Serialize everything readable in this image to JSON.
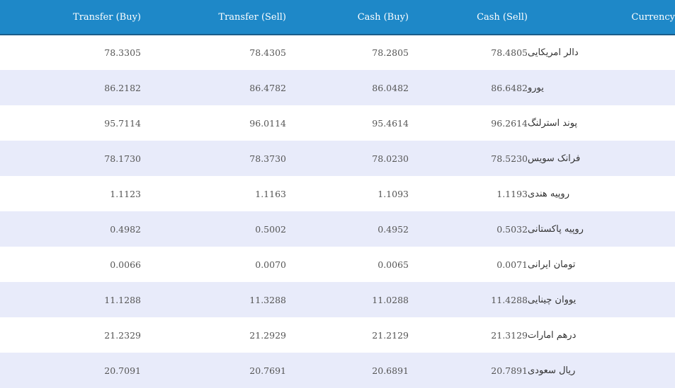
{
  "table": {
    "headers": {
      "transfer_buy": "Transfer (Buy)",
      "transfer_sell": "Transfer (Sell)",
      "cash_buy": "Cash (Buy)",
      "cash_sell": "Cash (Sell)",
      "currency": "Currency"
    },
    "rows": [
      {
        "transfer_buy": "78.3305",
        "transfer_sell": "78.4305",
        "cash_buy": "78.2805",
        "cash_sell": "78.4805",
        "currency": "دالر امریکایی"
      },
      {
        "transfer_buy": "86.2182",
        "transfer_sell": "86.4782",
        "cash_buy": "86.0482",
        "cash_sell": "86.6482",
        "currency": "یورو"
      },
      {
        "transfer_buy": "95.7114",
        "transfer_sell": "96.0114",
        "cash_buy": "95.4614",
        "cash_sell": "96.2614",
        "currency": "پوند استرلنگ"
      },
      {
        "transfer_buy": "78.1730",
        "transfer_sell": "78.3730",
        "cash_buy": "78.0230",
        "cash_sell": "78.5230",
        "currency": "فرانک سویس"
      },
      {
        "transfer_buy": "1.1123",
        "transfer_sell": "1.1163",
        "cash_buy": "1.1093",
        "cash_sell": "1.1193",
        "currency": "روپیه هندی"
      },
      {
        "transfer_buy": "0.4982",
        "transfer_sell": "0.5002",
        "cash_buy": "0.4952",
        "cash_sell": "0.5032",
        "currency": "روپیه پاکستانی"
      },
      {
        "transfer_buy": "0.0066",
        "transfer_sell": "0.0070",
        "cash_buy": "0.0065",
        "cash_sell": "0.0071",
        "currency": "تومان ایرانی"
      },
      {
        "transfer_buy": "11.1288",
        "transfer_sell": "11.3288",
        "cash_buy": "11.0288",
        "cash_sell": "11.4288",
        "currency": "یووان چینایی"
      },
      {
        "transfer_buy": "21.2329",
        "transfer_sell": "21.2929",
        "cash_buy": "21.2129",
        "cash_sell": "21.3129",
        "currency": "درهم امارات"
      },
      {
        "transfer_buy": "20.7091",
        "transfer_sell": "20.7691",
        "cash_buy": "20.6891",
        "cash_sell": "20.7891",
        "currency": "ریال سعودی"
      }
    ]
  },
  "colors": {
    "header_bg": "#1e88c8",
    "stripe_bg": "#e8ebfa"
  }
}
